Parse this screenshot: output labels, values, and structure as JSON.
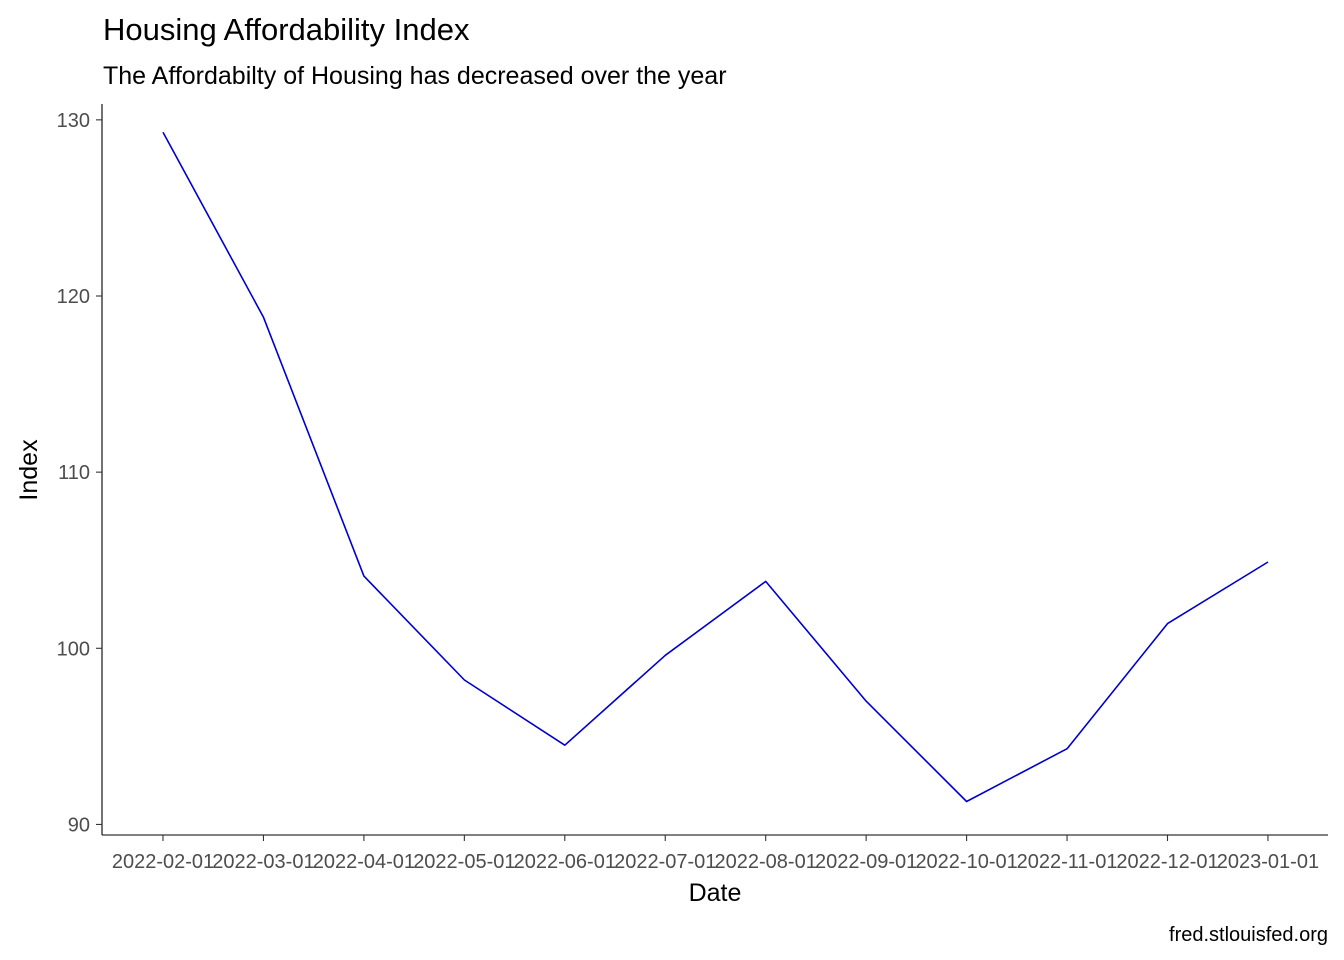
{
  "chart_data": {
    "type": "line",
    "title": "Housing Affordability Index",
    "subtitle": "The Affordabilty of Housing has decreased over the year",
    "xlabel": "Date",
    "ylabel": "Index",
    "caption": "fred.stlouisfed.org",
    "x": [
      "2022-02-01",
      "2022-03-01",
      "2022-04-01",
      "2022-05-01",
      "2022-06-01",
      "2022-07-01",
      "2022-08-01",
      "2022-09-01",
      "2022-10-01",
      "2022-11-01",
      "2022-12-01",
      "2023-01-01"
    ],
    "series": [
      {
        "values": [
          129.3,
          118.8,
          104.1,
          98.2,
          94.5,
          99.6,
          103.8,
          97.0,
          91.3,
          94.3,
          101.4,
          104.9
        ],
        "color": "#0000cd"
      }
    ],
    "ylim": [
      89.4,
      130.9
    ],
    "yticks": [
      90,
      100,
      110,
      120,
      130
    ],
    "grid": false,
    "legend": "none"
  }
}
